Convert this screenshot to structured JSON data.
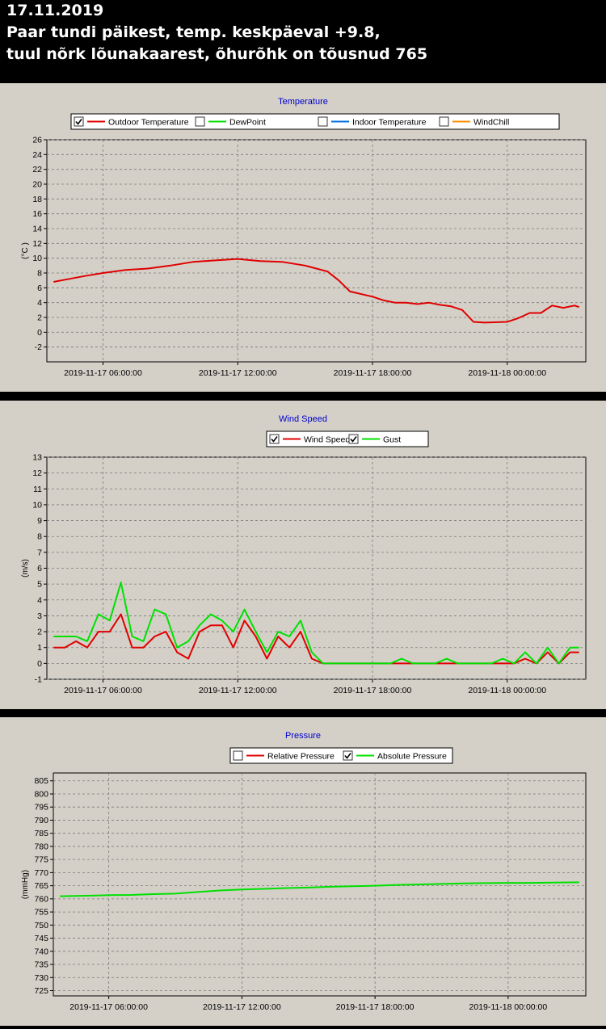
{
  "header": {
    "line1": "17.11.2019",
    "line2": "Paar tundi päikest, temp. keskpäeval +9.8,",
    "line3": "tuul nõrk lõunakaarest, õhurõhk on tõusnud 765"
  },
  "chart_data": [
    {
      "type": "line",
      "title": "Temperature",
      "ylabel": "(°C )",
      "ylim": [
        -4,
        26
      ],
      "yticks": [
        -2,
        0,
        2,
        4,
        6,
        8,
        10,
        12,
        14,
        16,
        18,
        20,
        22,
        24,
        26
      ],
      "xlim": [
        3.5,
        27.5
      ],
      "x_tick_positions": [
        6,
        12,
        18,
        24
      ],
      "x_tick_labels": [
        "2019-11-17 06:00:00",
        "2019-11-17 12:00:00",
        "2019-11-17 18:00:00",
        "2019-11-18 00:00:00"
      ],
      "x_unit": "hours from 2019-11-17 00:00",
      "grid": true,
      "legend_position": "top",
      "series": [
        {
          "name": "Outdoor Temperature",
          "color": "#e00000",
          "checked": true,
          "visible": true,
          "x": [
            3.8,
            4.5,
            5.2,
            6,
            7,
            8,
            9,
            10,
            11,
            12,
            13,
            14,
            15,
            15.5,
            16,
            16.5,
            17,
            18,
            18.5,
            19,
            19.5,
            20,
            20.5,
            21,
            21.5,
            22,
            22.5,
            23,
            24,
            24.5,
            25,
            25.5,
            26,
            26.5,
            27,
            27.2
          ],
          "y": [
            6.8,
            7.2,
            7.6,
            8.0,
            8.4,
            8.6,
            9.0,
            9.5,
            9.7,
            9.9,
            9.6,
            9.5,
            9.0,
            8.6,
            8.2,
            7.0,
            5.5,
            4.8,
            4.3,
            4.0,
            4.0,
            3.8,
            4.0,
            3.7,
            3.5,
            3.0,
            1.4,
            1.3,
            1.4,
            1.9,
            2.6,
            2.6,
            3.6,
            3.3,
            3.6,
            3.4
          ]
        },
        {
          "name": "DewPoint",
          "color": "#00e000",
          "checked": false,
          "visible": false,
          "x": [],
          "y": []
        },
        {
          "name": "Indoor Temperature",
          "color": "#0070e0",
          "checked": false,
          "visible": false,
          "x": [],
          "y": []
        },
        {
          "name": "WindChill",
          "color": "#ff8c00",
          "checked": false,
          "visible": false,
          "x": [],
          "y": []
        }
      ]
    },
    {
      "type": "line",
      "title": "Wind Speed",
      "ylabel": "(m/s)",
      "ylim": [
        -1,
        13
      ],
      "yticks": [
        -1,
        0,
        1,
        2,
        3,
        4,
        5,
        6,
        7,
        8,
        9,
        10,
        11,
        12,
        13
      ],
      "xlim": [
        3.5,
        27.5
      ],
      "x_tick_positions": [
        6,
        12,
        18,
        24
      ],
      "x_tick_labels": [
        "2019-11-17 06:00:00",
        "2019-11-17 12:00:00",
        "2019-11-17 18:00:00",
        "2019-11-18 00:00:00"
      ],
      "x_unit": "hours from 2019-11-17 00:00",
      "grid": true,
      "legend_position": "top",
      "series": [
        {
          "name": "Wind Speed",
          "color": "#e00000",
          "checked": true,
          "visible": true,
          "x": [
            3.8,
            4.3,
            4.8,
            5.3,
            5.8,
            6.3,
            6.8,
            7.3,
            7.8,
            8.3,
            8.8,
            9.3,
            9.8,
            10.3,
            10.8,
            11.3,
            11.8,
            12.3,
            12.8,
            13.3,
            13.8,
            14.3,
            14.8,
            15.3,
            15.8,
            16.3,
            18.3,
            18.8,
            19.3,
            19.8,
            20.3,
            20.8,
            21.3,
            21.8,
            22.3,
            22.8,
            23.3,
            23.8,
            24.3,
            24.8,
            25.3,
            25.8,
            26.3,
            26.8,
            27.2
          ],
          "y": [
            1.0,
            1.0,
            1.4,
            1.0,
            2.0,
            2.0,
            3.1,
            1.0,
            1.0,
            1.7,
            2.0,
            0.7,
            0.3,
            2.0,
            2.4,
            2.4,
            1.0,
            2.7,
            1.7,
            0.3,
            1.7,
            1.0,
            2.0,
            0.3,
            0.0,
            0.0,
            0.0,
            0.0,
            0.0,
            0.0,
            0.0,
            0.0,
            0.0,
            0.0,
            0.0,
            0.0,
            0.0,
            0.0,
            0.0,
            0.3,
            0.0,
            0.7,
            0.0,
            0.7,
            0.7
          ]
        },
        {
          "name": "Gust",
          "color": "#00e000",
          "checked": true,
          "visible": true,
          "x": [
            3.8,
            4.3,
            4.8,
            5.3,
            5.8,
            6.3,
            6.8,
            7.3,
            7.8,
            8.3,
            8.8,
            9.3,
            9.8,
            10.3,
            10.8,
            11.3,
            11.8,
            12.3,
            12.8,
            13.3,
            13.8,
            14.3,
            14.8,
            15.3,
            15.8,
            16.3,
            18.3,
            18.8,
            19.3,
            19.8,
            20.3,
            20.8,
            21.3,
            21.8,
            22.3,
            22.8,
            23.3,
            23.8,
            24.3,
            24.8,
            25.3,
            25.8,
            26.3,
            26.8,
            27.2
          ],
          "y": [
            1.7,
            1.7,
            1.7,
            1.4,
            3.1,
            2.7,
            5.1,
            1.7,
            1.4,
            3.4,
            3.1,
            1.0,
            1.4,
            2.4,
            3.1,
            2.7,
            2.0,
            3.4,
            2.0,
            0.7,
            2.0,
            1.7,
            2.7,
            0.7,
            0.0,
            0.0,
            0.0,
            0.0,
            0.3,
            0.0,
            0.0,
            0.0,
            0.3,
            0.0,
            0.0,
            0.0,
            0.0,
            0.3,
            0.0,
            0.7,
            0.0,
            1.0,
            0.0,
            1.0,
            1.0
          ]
        }
      ]
    },
    {
      "type": "line",
      "title": "Pressure",
      "ylabel": "(mmHg)",
      "ylim": [
        723,
        808
      ],
      "yticks": [
        725,
        730,
        735,
        740,
        745,
        750,
        755,
        760,
        765,
        770,
        775,
        780,
        785,
        790,
        795,
        800,
        805
      ],
      "xlim": [
        3.5,
        27.5
      ],
      "x_tick_positions": [
        6,
        12,
        18,
        24
      ],
      "x_tick_labels": [
        "2019-11-17 06:00:00",
        "2019-11-17 12:00:00",
        "2019-11-17 18:00:00",
        "2019-11-18 00:00:00"
      ],
      "x_unit": "hours from 2019-11-17 00:00",
      "grid": true,
      "legend_position": "top",
      "series": [
        {
          "name": "Relative Pressure",
          "color": "#e00000",
          "checked": false,
          "visible": false,
          "x": [],
          "y": []
        },
        {
          "name": "Absolute Pressure",
          "color": "#00e000",
          "checked": true,
          "visible": true,
          "x": [
            3.8,
            5,
            6,
            7,
            8,
            9,
            10,
            11,
            12,
            13,
            14,
            15,
            16,
            17,
            18,
            19,
            20,
            21,
            22,
            23,
            24,
            25,
            26,
            27.2
          ],
          "y": [
            761.0,
            761.2,
            761.4,
            761.5,
            761.8,
            762.0,
            762.6,
            763.2,
            763.6,
            763.8,
            764.1,
            764.3,
            764.6,
            764.8,
            765.0,
            765.3,
            765.5,
            765.7,
            765.9,
            766.0,
            766.1,
            766.1,
            766.2,
            766.3
          ]
        }
      ]
    }
  ]
}
